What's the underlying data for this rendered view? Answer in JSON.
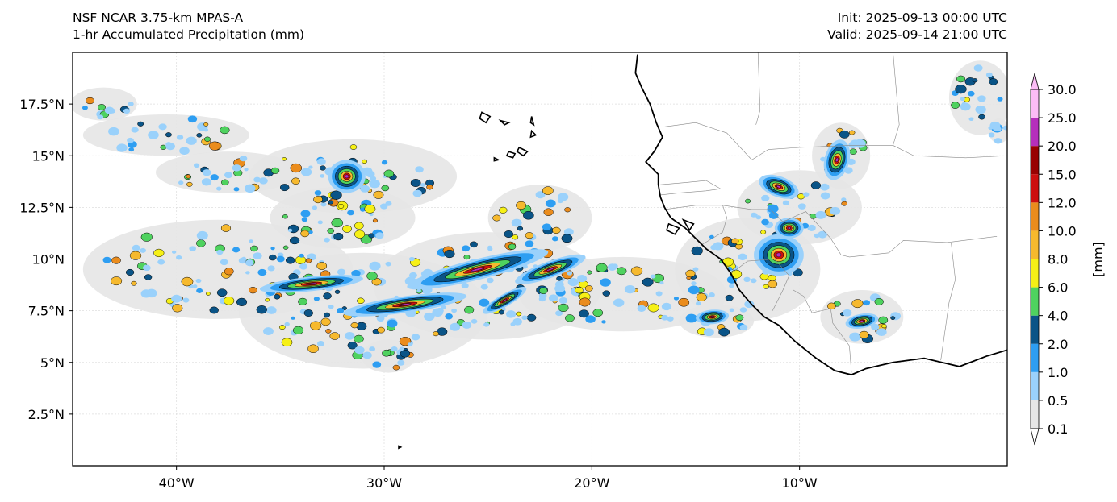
{
  "header": {
    "model": "NSF NCAR 3.75-km MPAS-A",
    "product": "1-hr Accumulated Precipitation (mm)",
    "init": "Init: 2025-09-13 00:00 UTC",
    "valid": "Valid: 2025-09-14 21:00 UTC"
  },
  "map": {
    "extent": {
      "lon_min": -45,
      "lon_max": 0,
      "lat_min": 0,
      "lat_max": 20
    },
    "grid": true,
    "lon_ticks": [
      {
        "value": -40,
        "label": "40°W"
      },
      {
        "value": -30,
        "label": "30°W"
      },
      {
        "value": -20,
        "label": "20°W"
      },
      {
        "value": -10,
        "label": "10°W"
      }
    ],
    "lat_ticks": [
      {
        "value": 2.5,
        "label": "2.5°N"
      },
      {
        "value": 5,
        "label": "5°N"
      },
      {
        "value": 7.5,
        "label": "7.5°N"
      },
      {
        "value": 10,
        "label": "10°N"
      },
      {
        "value": 12.5,
        "label": "12.5°N"
      },
      {
        "value": 15,
        "label": "15°N"
      },
      {
        "value": 17.5,
        "label": "17.5°N"
      }
    ],
    "coastline": [
      [
        -17.8,
        19.9
      ],
      [
        -17.9,
        19.0
      ],
      [
        -17.6,
        18.3
      ],
      [
        -17.2,
        17.5
      ],
      [
        -16.9,
        16.6
      ],
      [
        -16.6,
        15.9
      ],
      [
        -17.0,
        15.2
      ],
      [
        -17.4,
        14.7
      ],
      [
        -17.2,
        14.5
      ],
      [
        -16.8,
        14.1
      ],
      [
        -16.8,
        13.6
      ],
      [
        -16.7,
        13.0
      ],
      [
        -16.5,
        12.5
      ],
      [
        -16.2,
        12.0
      ],
      [
        -15.5,
        11.5
      ],
      [
        -15.0,
        11.0
      ],
      [
        -14.5,
        10.5
      ],
      [
        -13.8,
        10.0
      ],
      [
        -13.3,
        9.3
      ],
      [
        -12.9,
        8.5
      ],
      [
        -12.3,
        7.8
      ],
      [
        -11.7,
        7.2
      ],
      [
        -11.0,
        6.8
      ],
      [
        -10.2,
        6.0
      ],
      [
        -9.2,
        5.2
      ],
      [
        -8.3,
        4.6
      ],
      [
        -7.5,
        4.4
      ],
      [
        -6.8,
        4.7
      ],
      [
        -5.5,
        5.0
      ],
      [
        -4.0,
        5.2
      ],
      [
        -2.3,
        4.8
      ],
      [
        -1.0,
        5.3
      ],
      [
        0.0,
        5.6
      ]
    ],
    "islands": [
      [
        [
          -25.3,
          17.1
        ],
        [
          -24.9,
          16.9
        ],
        [
          -25.1,
          16.6
        ],
        [
          -25.4,
          16.8
        ]
      ],
      [
        [
          -24.4,
          16.7
        ],
        [
          -24.0,
          16.6
        ],
        [
          -24.2,
          16.5
        ]
      ],
      [
        [
          -22.9,
          16.9
        ],
        [
          -22.8,
          16.5
        ],
        [
          -22.95,
          16.6
        ]
      ],
      [
        [
          -22.9,
          16.2
        ],
        [
          -22.7,
          16.0
        ],
        [
          -22.95,
          15.9
        ]
      ],
      [
        [
          -24.7,
          14.9
        ],
        [
          -24.5,
          14.8
        ],
        [
          -24.7,
          14.75
        ]
      ],
      [
        [
          -24.0,
          15.2
        ],
        [
          -23.7,
          15.1
        ],
        [
          -23.8,
          14.9
        ],
        [
          -24.1,
          15.0
        ]
      ],
      [
        [
          -23.5,
          15.4
        ],
        [
          -23.1,
          15.2
        ],
        [
          -23.3,
          15.0
        ],
        [
          -23.6,
          15.2
        ]
      ],
      [
        [
          -16.3,
          11.7
        ],
        [
          -15.8,
          11.5
        ],
        [
          -16.0,
          11.2
        ],
        [
          -16.4,
          11.4
        ]
      ],
      [
        [
          -15.6,
          11.9
        ],
        [
          -15.1,
          11.7
        ],
        [
          -15.3,
          11.4
        ]
      ],
      [
        [
          -29.3,
          0.95
        ],
        [
          -29.2,
          0.9
        ],
        [
          -29.3,
          0.85
        ]
      ]
    ],
    "borders": [
      [
        [
          -12.0,
          20.0
        ],
        [
          -11.9,
          17.2
        ],
        [
          -12.1,
          16.5
        ]
      ],
      [
        [
          -16.5,
          16.4
        ],
        [
          -15.0,
          16.6
        ],
        [
          -13.5,
          16.1
        ],
        [
          -12.3,
          14.8
        ],
        [
          -11.5,
          15.3
        ],
        [
          -10.0,
          15.4
        ],
        [
          -7.5,
          15.5
        ],
        [
          -5.5,
          15.5
        ],
        [
          -5.2,
          16.5
        ],
        [
          -5.5,
          20.0
        ]
      ],
      [
        [
          -16.7,
          13.6
        ],
        [
          -15.5,
          13.7
        ],
        [
          -14.5,
          13.8
        ],
        [
          -13.8,
          13.4
        ],
        [
          -14.5,
          13.3
        ],
        [
          -15.8,
          13.2
        ],
        [
          -16.7,
          13.1
        ]
      ],
      [
        [
          -16.5,
          12.4
        ],
        [
          -15.0,
          12.6
        ],
        [
          -13.7,
          12.6
        ],
        [
          -12.3,
          12.4
        ],
        [
          -11.4,
          12.4
        ]
      ],
      [
        [
          -13.7,
          12.6
        ],
        [
          -13.5,
          12.0
        ],
        [
          -13.7,
          11.3
        ],
        [
          -14.7,
          10.7
        ]
      ],
      [
        [
          -13.3,
          9.3
        ],
        [
          -12.5,
          9.9
        ],
        [
          -11.2,
          10.0
        ],
        [
          -10.5,
          9.2
        ],
        [
          -10.8,
          8.5
        ],
        [
          -11.3,
          7.5
        ]
      ],
      [
        [
          -10.3,
          8.5
        ],
        [
          -9.8,
          8.2
        ],
        [
          -9.4,
          7.4
        ],
        [
          -8.5,
          7.6
        ],
        [
          -8.4,
          6.9
        ],
        [
          -7.6,
          5.8
        ],
        [
          -7.5,
          4.5
        ]
      ],
      [
        [
          -11.4,
          12.4
        ],
        [
          -10.8,
          11.8
        ],
        [
          -9.7,
          12.3
        ],
        [
          -8.5,
          11.0
        ],
        [
          -8.0,
          10.2
        ],
        [
          -7.6,
          10.1
        ],
        [
          -5.7,
          10.3
        ],
        [
          -5.0,
          10.9
        ],
        [
          -2.9,
          10.8
        ],
        [
          -0.5,
          11.1
        ]
      ],
      [
        [
          -5.5,
          15.5
        ],
        [
          -4.5,
          15.0
        ],
        [
          -2.0,
          14.9
        ],
        [
          0.0,
          15.0
        ]
      ],
      [
        [
          -3.2,
          5.1
        ],
        [
          -2.8,
          7.9
        ],
        [
          -2.5,
          9.0
        ],
        [
          -2.7,
          10.8
        ]
      ]
    ]
  },
  "colorbar": {
    "label": "[mm]",
    "levels": [
      "0.1",
      "0.5",
      "1.0",
      "2.0",
      "4.0",
      "6.0",
      "8.0",
      "10.0",
      "12.0",
      "15.0",
      "20.0",
      "25.0",
      "30.0"
    ],
    "colors": [
      "#e6e6e6",
      "#9ad1fb",
      "#2e9ef2",
      "#0a5487",
      "#4fd25f",
      "#f6f016",
      "#f6b92e",
      "#ea8c1d",
      "#cc0f0f",
      "#980101",
      "#b52fbb",
      "#fbbcf6"
    ],
    "extend_min_color": "#ffffff",
    "extend_max_color": "#fbbcf6"
  },
  "precip_regions": [
    {
      "lon": -43.5,
      "lat": 17.5,
      "rx": 1.6,
      "ry": 0.8
    },
    {
      "lon": -40.5,
      "lat": 16.0,
      "rx": 4.0,
      "ry": 1.0
    },
    {
      "lon": -37.5,
      "lat": 14.2,
      "rx": 3.5,
      "ry": 1.0
    },
    {
      "lon": -31.5,
      "lat": 14.0,
      "rx": 5.0,
      "ry": 1.8
    },
    {
      "lon": -32.0,
      "lat": 12.0,
      "rx": 3.5,
      "ry": 1.5
    },
    {
      "lon": -38.0,
      "lat": 9.5,
      "rx": 6.5,
      "ry": 2.4
    },
    {
      "lon": -31.0,
      "lat": 7.5,
      "rx": 6.0,
      "ry": 2.8
    },
    {
      "lon": -25.0,
      "lat": 8.7,
      "rx": 5.5,
      "ry": 2.6
    },
    {
      "lon": -22.5,
      "lat": 12.0,
      "rx": 2.5,
      "ry": 1.6
    },
    {
      "lon": -18.5,
      "lat": 8.3,
      "rx": 5.0,
      "ry": 1.8
    },
    {
      "lon": -12.5,
      "lat": 9.5,
      "rx": 3.5,
      "ry": 2.5
    },
    {
      "lon": -10.0,
      "lat": 12.5,
      "rx": 3.0,
      "ry": 1.8
    },
    {
      "lon": -8.0,
      "lat": 15.0,
      "rx": 1.4,
      "ry": 1.6
    },
    {
      "lon": -14.0,
      "lat": 7.0,
      "rx": 1.8,
      "ry": 0.8
    },
    {
      "lon": -7.0,
      "lat": 7.2,
      "rx": 2.0,
      "ry": 1.3
    },
    {
      "lon": -1.3,
      "lat": 17.8,
      "rx": 1.5,
      "ry": 1.8
    },
    {
      "lon": -0.4,
      "lat": 16.2,
      "rx": 0.5,
      "ry": 0.6
    },
    {
      "lon": -29.8,
      "lat": 5.3,
      "rx": 1.3,
      "ry": 0.8
    }
  ],
  "precip_cores": [
    {
      "lon": -25.5,
      "lat": 9.5,
      "rx": 3.5,
      "ry": 0.5,
      "rot": -14
    },
    {
      "lon": -29.0,
      "lat": 7.8,
      "rx": 3.0,
      "ry": 0.4,
      "rot": -8
    },
    {
      "lon": -33.5,
      "lat": 8.8,
      "rx": 2.5,
      "ry": 0.35,
      "rot": -6
    },
    {
      "lon": -22.0,
      "lat": 9.5,
      "rx": 1.8,
      "ry": 0.4,
      "rot": -20
    },
    {
      "lon": -24.2,
      "lat": 8.0,
      "rx": 1.2,
      "ry": 0.3,
      "rot": -30
    },
    {
      "lon": -11.0,
      "lat": 10.2,
      "rx": 1.2,
      "ry": 1.0,
      "rot": 0
    },
    {
      "lon": -10.5,
      "lat": 11.5,
      "rx": 0.7,
      "ry": 0.5,
      "rot": 0
    },
    {
      "lon": -11.0,
      "lat": 13.5,
      "rx": 1.0,
      "ry": 0.5,
      "rot": 20
    },
    {
      "lon": -8.2,
      "lat": 14.8,
      "rx": 0.6,
      "ry": 1.0,
      "rot": 15
    },
    {
      "lon": -7.0,
      "lat": 7.0,
      "rx": 0.8,
      "ry": 0.35,
      "rot": -10
    },
    {
      "lon": -14.2,
      "lat": 7.2,
      "rx": 0.8,
      "ry": 0.35,
      "rot": -5
    },
    {
      "lon": -31.8,
      "lat": 14.0,
      "rx": 0.9,
      "ry": 0.8,
      "rot": 0
    }
  ]
}
